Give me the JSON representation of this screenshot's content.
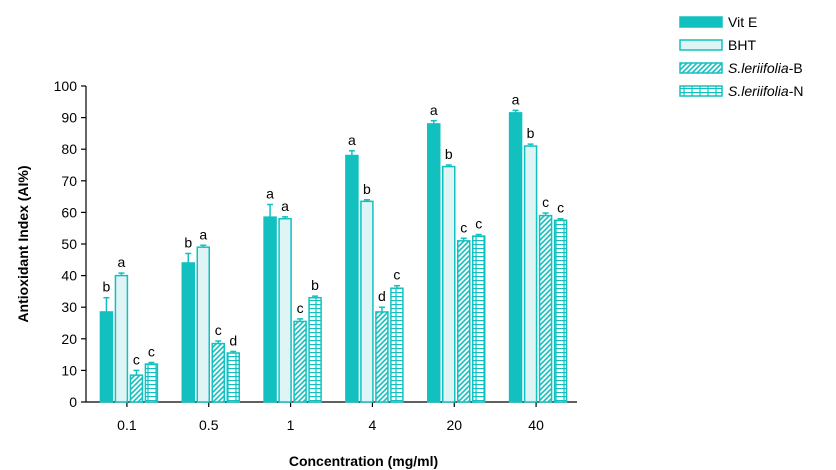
{
  "chart_data": {
    "type": "bar",
    "xlabel": "Concentration (mg/ml)",
    "ylabel": "Antioxidant Index (AI%)",
    "ylim": [
      0,
      100
    ],
    "yticks": [
      0,
      10,
      20,
      30,
      40,
      50,
      60,
      70,
      80,
      90,
      100
    ],
    "categories": [
      "0.1",
      "0.5",
      "1",
      "4",
      "20",
      "40"
    ],
    "legend_position": "top-right",
    "series": [
      {
        "name": "Vit E",
        "italic_part": "",
        "suffix": "",
        "pattern": "solid",
        "values": [
          28.5,
          44,
          58.5,
          78,
          88,
          91.5
        ],
        "errors": [
          4.5,
          3,
          4,
          1.5,
          1,
          0.8
        ],
        "labels": [
          "b",
          "b",
          "a",
          "a",
          "a",
          "a"
        ]
      },
      {
        "name": "BHT",
        "italic_part": "",
        "suffix": "",
        "pattern": "light",
        "values": [
          40,
          49,
          58,
          63.5,
          74.5,
          81
        ],
        "errors": [
          0.8,
          0.6,
          0.6,
          0.5,
          0.5,
          0.6
        ],
        "labels": [
          "a",
          "a",
          "a",
          "b",
          "b",
          "b"
        ]
      },
      {
        "name": "S.leriifolia-B",
        "italic_part": "S.leriifolia",
        "suffix": "-B",
        "pattern": "diagonal",
        "values": [
          8.5,
          18.5,
          25.5,
          28.5,
          51,
          59
        ],
        "errors": [
          1.5,
          0.8,
          0.8,
          1.5,
          0.8,
          0.8
        ],
        "labels": [
          "c",
          "c",
          "c",
          "d",
          "c",
          "c"
        ]
      },
      {
        "name": "S.leriifolia-N",
        "italic_part": "S.leriifolia",
        "suffix": "-N",
        "pattern": "brick",
        "values": [
          12,
          15.5,
          33,
          36,
          52.5,
          57.5
        ],
        "errors": [
          0.5,
          0.5,
          0.5,
          0.8,
          0.5,
          0.5
        ],
        "labels": [
          "c",
          "d",
          "b",
          "c",
          "c",
          "c"
        ]
      }
    ],
    "colors": {
      "teal": "#13c0c0",
      "light_fill": "#dff4f4",
      "white": "#ffffff",
      "axis": "#000000"
    }
  }
}
